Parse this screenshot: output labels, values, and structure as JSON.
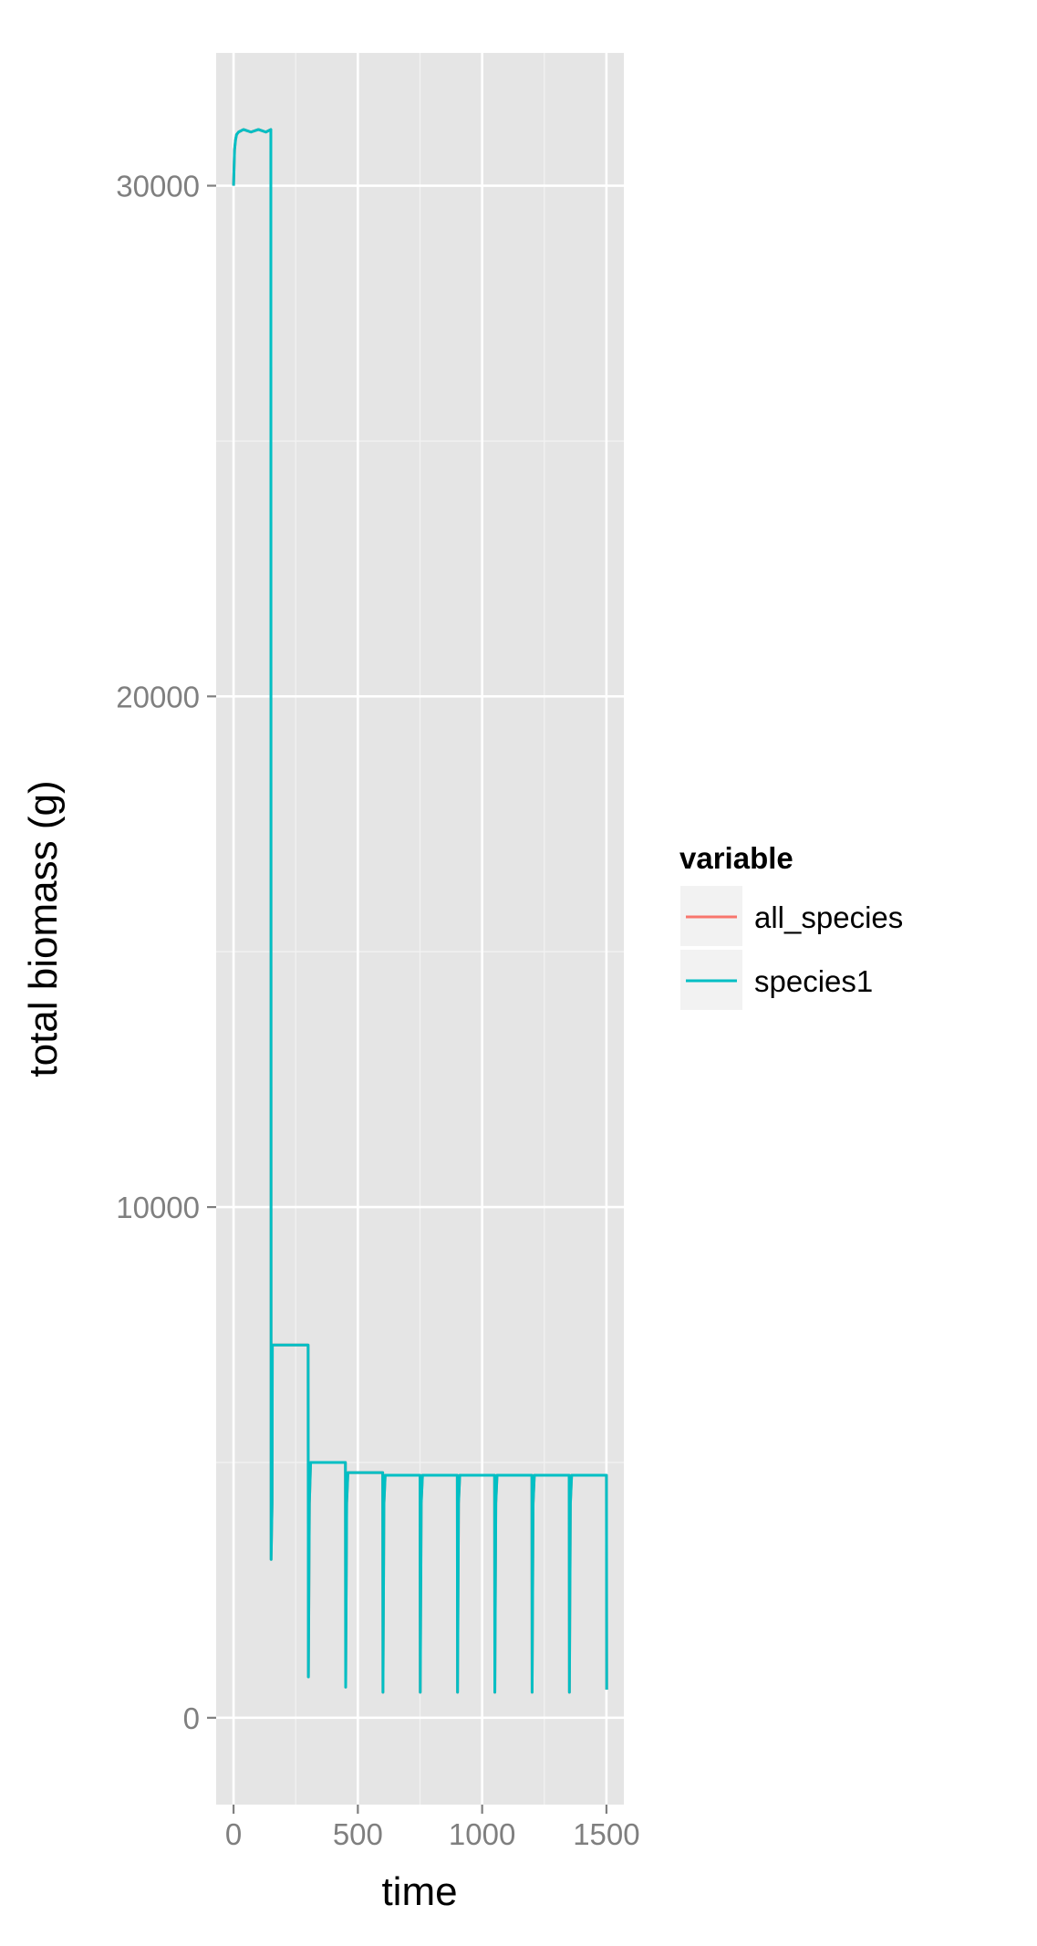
{
  "chart_data": {
    "type": "line",
    "title": "",
    "xlabel": "time",
    "ylabel": "total biomass (g)",
    "xlim": [
      -70,
      1570
    ],
    "ylim": [
      -1700,
      32600
    ],
    "x_ticks": [
      0,
      500,
      1000,
      1500
    ],
    "x_tick_labels": [
      "0",
      "500",
      "1000",
      "1500"
    ],
    "y_ticks": [
      0,
      10000,
      20000,
      30000
    ],
    "y_tick_labels": [
      "0",
      "10000",
      "20000",
      "30000"
    ],
    "grid": true,
    "legend": {
      "title": "variable",
      "placement": "right",
      "entries": [
        {
          "name": "all_species",
          "color": "#F8766D"
        },
        {
          "name": "species1",
          "color": "#00BFC4"
        }
      ]
    },
    "series": [
      {
        "name": "all_species",
        "color": "#F8766D",
        "x": [
          0,
          4,
          8,
          12,
          20,
          40,
          70,
          100,
          130,
          150,
          151,
          155,
          156,
          160,
          200,
          240,
          280,
          300,
          301,
          305,
          310,
          350,
          400,
          440,
          450,
          451,
          455,
          460,
          500,
          560,
          600,
          601,
          605,
          610,
          650,
          720,
          750,
          751,
          755,
          760,
          800,
          870,
          900,
          901,
          905,
          910,
          950,
          1020,
          1050,
          1051,
          1055,
          1060,
          1100,
          1170,
          1200,
          1201,
          1205,
          1210,
          1250,
          1320,
          1350,
          1351,
          1355,
          1360,
          1400,
          1470,
          1500,
          1501
        ],
        "values": [
          30000,
          30700,
          30900,
          31000,
          31050,
          31100,
          31050,
          31100,
          31050,
          31100,
          3100,
          4200,
          7300,
          7300,
          7300,
          7300,
          7300,
          7300,
          800,
          4200,
          5000,
          5000,
          5000,
          5000,
          5000,
          600,
          4200,
          4800,
          4800,
          4800,
          4800,
          500,
          4200,
          4750,
          4750,
          4750,
          4750,
          500,
          4200,
          4750,
          4750,
          4750,
          4750,
          500,
          4200,
          4750,
          4750,
          4750,
          4750,
          500,
          4200,
          4750,
          4750,
          4750,
          4750,
          500,
          4200,
          4750,
          4750,
          4750,
          4750,
          500,
          4200,
          4750,
          4750,
          4750,
          4750,
          550
        ]
      },
      {
        "name": "species1",
        "color": "#00BFC4",
        "x": [
          0,
          4,
          8,
          12,
          20,
          40,
          70,
          100,
          130,
          150,
          151,
          155,
          156,
          160,
          200,
          240,
          280,
          300,
          301,
          305,
          310,
          350,
          400,
          440,
          450,
          451,
          455,
          460,
          500,
          560,
          600,
          601,
          605,
          610,
          650,
          720,
          750,
          751,
          755,
          760,
          800,
          870,
          900,
          901,
          905,
          910,
          950,
          1020,
          1050,
          1051,
          1055,
          1060,
          1100,
          1170,
          1200,
          1201,
          1205,
          1210,
          1250,
          1320,
          1350,
          1351,
          1355,
          1360,
          1400,
          1470,
          1500,
          1501
        ],
        "values": [
          30000,
          30700,
          30900,
          31000,
          31050,
          31100,
          31050,
          31100,
          31050,
          31100,
          3100,
          4200,
          7300,
          7300,
          7300,
          7300,
          7300,
          7300,
          800,
          4200,
          5000,
          5000,
          5000,
          5000,
          5000,
          600,
          4200,
          4800,
          4800,
          4800,
          4800,
          500,
          4200,
          4750,
          4750,
          4750,
          4750,
          500,
          4200,
          4750,
          4750,
          4750,
          4750,
          500,
          4200,
          4750,
          4750,
          4750,
          4750,
          500,
          4200,
          4750,
          4750,
          4750,
          4750,
          500,
          4200,
          4750,
          4750,
          4750,
          4750,
          500,
          4200,
          4750,
          4750,
          4750,
          4750,
          550
        ]
      }
    ],
    "colors": {
      "panel_background": "#E5E5E5",
      "grid_major": "#FFFFFF",
      "grid_minor": "#F2F2F2",
      "legend_key_background": "#F2F2F2",
      "tick_label": "#7F7F7F"
    }
  }
}
